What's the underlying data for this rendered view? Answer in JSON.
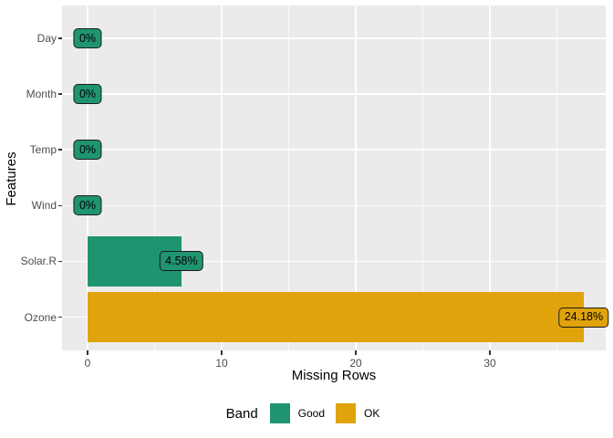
{
  "chart_data": {
    "type": "bar",
    "orientation": "horizontal",
    "title": "",
    "xlabel": "Missing Rows",
    "ylabel": "Features",
    "categories": [
      "Day",
      "Month",
      "Temp",
      "Wind",
      "Solar.R",
      "Ozone"
    ],
    "values": [
      0,
      0,
      0,
      0,
      7,
      37
    ],
    "pct_labels": [
      "0%",
      "0%",
      "0%",
      "0%",
      "4.58%",
      "24.18%"
    ],
    "bands": [
      "Good",
      "Good",
      "Good",
      "Good",
      "Good",
      "OK"
    ],
    "band_colors": {
      "Good": "#1F9470",
      "OK": "#E0A30C"
    },
    "x_ticks": [
      0,
      10,
      20,
      30
    ],
    "x_minor_ticks": [
      5,
      15,
      25,
      35
    ],
    "xlim": [
      -1.85,
      38.85
    ],
    "grid": true,
    "panel_background": "#EBEBEB",
    "gridline_color": "#FFFFFF",
    "tick_text_color": "#4D4D4D",
    "legend": {
      "title": "Band",
      "position": "bottom",
      "entries": [
        {
          "label": "Good",
          "band": "Good"
        },
        {
          "label": "OK",
          "band": "OK"
        }
      ]
    }
  }
}
